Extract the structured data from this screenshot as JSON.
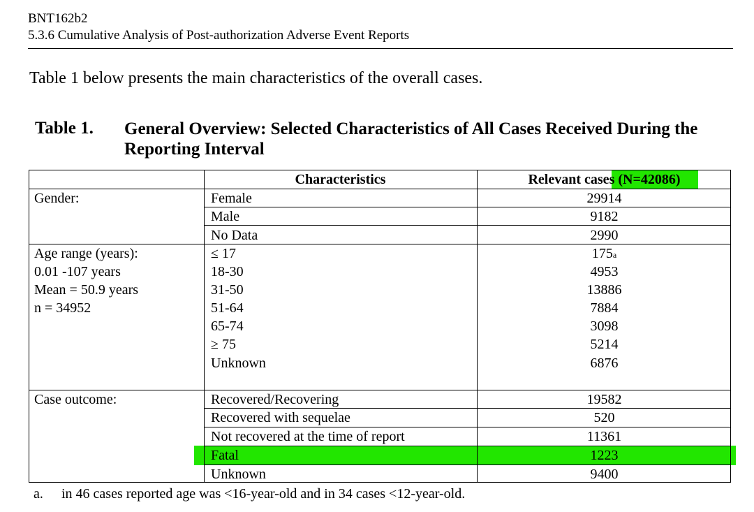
{
  "header": {
    "product": "BNT162b2",
    "section": "5.3.6 Cumulative Analysis of Post-authorization Adverse Event Reports"
  },
  "intro": "Table 1 below presents the main characteristics of the overall cases.",
  "table": {
    "label": "Table 1.",
    "title": "General Overview: Selected Characteristics of All Cases Received During the Reporting Interval",
    "col_characteristics": "Characteristics",
    "col_cases_prefix": "Relevant case",
    "col_cases_suffix": "s (N=42086)",
    "gender": {
      "label": "Gender:",
      "rows": [
        {
          "name": "Female",
          "value": "29914"
        },
        {
          "name": "Male",
          "value": "9182"
        },
        {
          "name": "No Data",
          "value": "2990"
        }
      ]
    },
    "age": {
      "label_lines": [
        "Age range (years):",
        "0.01 -107 years",
        "Mean = 50.9 years",
        "n = 34952"
      ],
      "rows": [
        {
          "name": "≤ 17",
          "value": "175",
          "sup": "a"
        },
        {
          "name": "18-30",
          "value": "4953"
        },
        {
          "name": "31-50",
          "value": "13886"
        },
        {
          "name": "51-64",
          "value": "7884"
        },
        {
          "name": "65-74",
          "value": "3098"
        },
        {
          "name": "≥ 75",
          "value": "5214"
        },
        {
          "name": "Unknown",
          "value": "6876"
        }
      ]
    },
    "outcome": {
      "label": "Case outcome:",
      "rows": [
        {
          "name": "Recovered/Recovering",
          "value": "19582"
        },
        {
          "name": "Recovered with sequelae",
          "value": "520"
        },
        {
          "name": "Not recovered at the time of report",
          "value": "11361"
        },
        {
          "name": "Fatal",
          "value": "1223"
        },
        {
          "name": "Unknown",
          "value": "9400"
        }
      ]
    }
  },
  "footnote": {
    "mark": "a.",
    "text": "in 46 cases reported age was <16-year-old and in 34 cases <12-year-old."
  },
  "colors": {
    "highlight": "#22e600"
  }
}
